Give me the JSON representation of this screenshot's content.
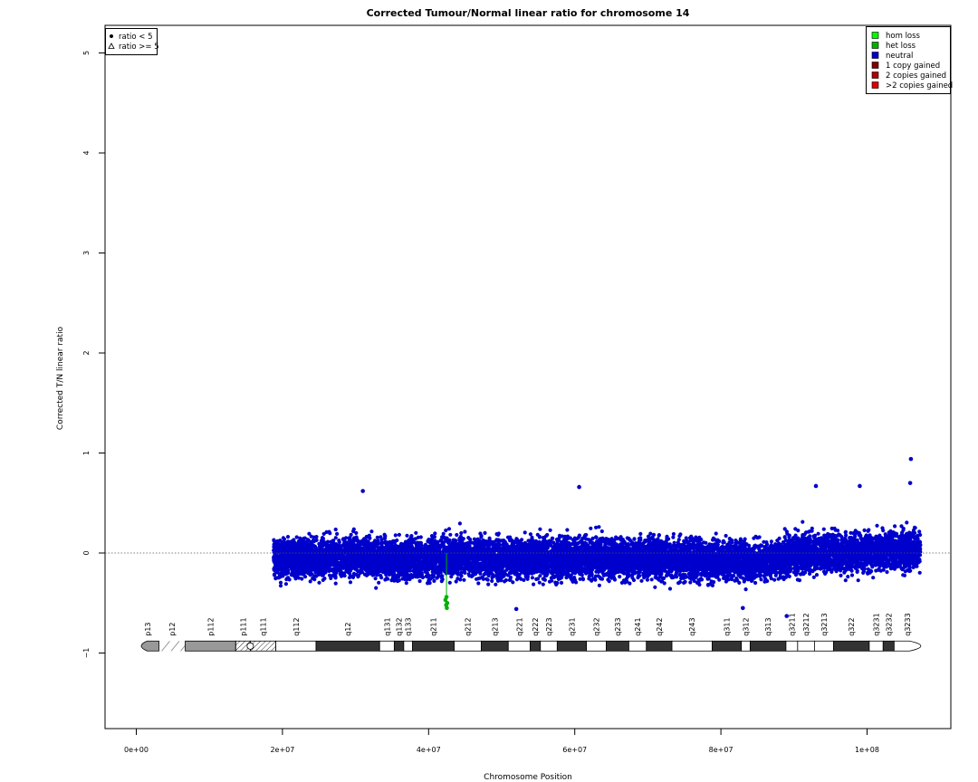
{
  "chart_data": {
    "type": "scatter",
    "title": "Corrected Tumour/Normal linear ratio for chromosome  14",
    "xlabel": "Chromosome Position",
    "ylabel": "Corrected T/N linear ratio",
    "xlim": [
      -7000000,
      111000000
    ],
    "ylim": [
      -1.8,
      5.3
    ],
    "x_ticks": [
      0,
      20000000,
      40000000,
      60000000,
      80000000,
      100000000
    ],
    "x_tick_labels": [
      "0e+00",
      "2e+07",
      "4e+07",
      "6e+07",
      "8e+07",
      "1e+08"
    ],
    "y_ticks": [
      -1,
      0,
      1,
      2,
      3,
      4,
      5
    ],
    "y_tick_labels": [
      "−1",
      "0",
      "1",
      "2",
      "3",
      "4",
      "5"
    ],
    "reference_line_y": 0,
    "data_range_x": [
      18800000,
      107300000
    ],
    "series": [
      {
        "name": "neutral",
        "color": "#0000cc",
        "description_points": [
          [
            18800000,
            -0.05
          ],
          [
            25000000,
            -0.05
          ],
          [
            30000000,
            -0.03
          ],
          [
            35000000,
            -0.06
          ],
          [
            40000000,
            -0.05
          ],
          [
            45000000,
            -0.04
          ],
          [
            50000000,
            -0.06
          ],
          [
            55000000,
            -0.05
          ],
          [
            60000000,
            -0.04
          ],
          [
            65000000,
            -0.05
          ],
          [
            70000000,
            -0.04
          ],
          [
            75000000,
            -0.06
          ],
          [
            80000000,
            -0.07
          ],
          [
            85000000,
            -0.08
          ],
          [
            90000000,
            -0.02
          ],
          [
            95000000,
            0.0
          ],
          [
            100000000,
            0.02
          ],
          [
            105000000,
            0.03
          ],
          [
            107300000,
            0.02
          ]
        ]
      },
      {
        "name": "het loss",
        "color": "#00b000",
        "points": [
          [
            42300000,
            -0.47
          ],
          [
            42400000,
            -0.52
          ],
          [
            42500000,
            -0.55
          ],
          [
            42450000,
            -0.44
          ],
          [
            42550000,
            -0.5
          ]
        ]
      }
    ],
    "outliers": [
      [
        106000000,
        0.94
      ],
      [
        105900000,
        0.7
      ],
      [
        31000000,
        0.62
      ],
      [
        60600000,
        0.66
      ],
      [
        93000000,
        0.67
      ],
      [
        99000000,
        0.67
      ],
      [
        52000000,
        -0.56
      ],
      [
        83000000,
        -0.55
      ],
      [
        89000000,
        -0.63
      ]
    ],
    "legend_marker": {
      "items": [
        {
          "symbol": "filled-circle",
          "label": "ratio < 5"
        },
        {
          "symbol": "open-triangle",
          "label": "ratio >= 5"
        }
      ],
      "position": "top-left"
    },
    "legend_state": {
      "items": [
        {
          "label": "hom loss",
          "color": "#00ff00"
        },
        {
          "label": "het loss",
          "color": "#00b000"
        },
        {
          "label": "neutral",
          "color": "#0000cc"
        },
        {
          "label": "1 copy gained",
          "color": "#800000"
        },
        {
          "label": "2 copies gained",
          "color": "#b00000"
        },
        {
          "label": ">2 copies gained",
          "color": "#dd0000"
        }
      ],
      "position": "top-right"
    },
    "ideogram": {
      "y_value": -0.93,
      "bands": [
        {
          "name": "p13",
          "start": 0,
          "end": 3100000,
          "stain": "gvar"
        },
        {
          "name": "p12",
          "start": 3100000,
          "end": 6700000,
          "stain": "stalk"
        },
        {
          "name": "p112",
          "start": 6700000,
          "end": 13600000,
          "stain": "gpos50"
        },
        {
          "name": "p111",
          "start": 13600000,
          "end": 15600000,
          "stain": "acen"
        },
        {
          "name": "q111",
          "start": 15600000,
          "end": 19100000,
          "stain": "acen"
        },
        {
          "name": "q112",
          "start": 19100000,
          "end": 24600000,
          "stain": "gneg"
        },
        {
          "name": "q12",
          "start": 24600000,
          "end": 33300000,
          "stain": "gpos100"
        },
        {
          "name": "q131",
          "start": 33300000,
          "end": 35300000,
          "stain": "gneg"
        },
        {
          "name": "q132",
          "start": 35300000,
          "end": 36600000,
          "stain": "gpos50"
        },
        {
          "name": "q133",
          "start": 36600000,
          "end": 37800000,
          "stain": "gneg"
        },
        {
          "name": "q211",
          "start": 37800000,
          "end": 43500000,
          "stain": "gpos100"
        },
        {
          "name": "q212",
          "start": 43500000,
          "end": 47200000,
          "stain": "gneg"
        },
        {
          "name": "q213",
          "start": 47200000,
          "end": 50900000,
          "stain": "gpos100"
        },
        {
          "name": "q221",
          "start": 50900000,
          "end": 53900000,
          "stain": "gneg"
        },
        {
          "name": "q222",
          "start": 53900000,
          "end": 55300000,
          "stain": "gpos50"
        },
        {
          "name": "q223",
          "start": 55300000,
          "end": 57600000,
          "stain": "gneg"
        },
        {
          "name": "q231",
          "start": 57600000,
          "end": 61600000,
          "stain": "gpos75"
        },
        {
          "name": "q232",
          "start": 61600000,
          "end": 64300000,
          "stain": "gneg"
        },
        {
          "name": "q233",
          "start": 64300000,
          "end": 67400000,
          "stain": "gpos50"
        },
        {
          "name": "q241",
          "start": 67400000,
          "end": 69800000,
          "stain": "gneg"
        },
        {
          "name": "q242",
          "start": 69800000,
          "end": 73300000,
          "stain": "gpos50"
        },
        {
          "name": "q243",
          "start": 73300000,
          "end": 78800000,
          "stain": "gneg"
        },
        {
          "name": "q311",
          "start": 78800000,
          "end": 82800000,
          "stain": "gpos100"
        },
        {
          "name": "q312",
          "start": 82800000,
          "end": 84000000,
          "stain": "gneg"
        },
        {
          "name": "q313",
          "start": 84000000,
          "end": 88900000,
          "stain": "gpos100"
        },
        {
          "name": "q3211",
          "label": "q3211",
          "start": 88900000,
          "end": 90500000,
          "stain": "gneg"
        },
        {
          "name": "q3212",
          "start": 90500000,
          "end": 92800000,
          "stain": "gpos25"
        },
        {
          "name": "q3213",
          "start": 92800000,
          "end": 95400000,
          "stain": "gneg"
        },
        {
          "name": "q322",
          "start": 95400000,
          "end": 100300000,
          "stain": "gpos50"
        },
        {
          "name": "q3231",
          "start": 100300000,
          "end": 102200000,
          "stain": "gneg"
        },
        {
          "name": "q3232",
          "start": 102200000,
          "end": 103700000,
          "stain": "gpos50"
        },
        {
          "name": "q3233",
          "start": 103700000,
          "end": 107300000,
          "stain": "gneg"
        }
      ]
    },
    "grid": false
  }
}
